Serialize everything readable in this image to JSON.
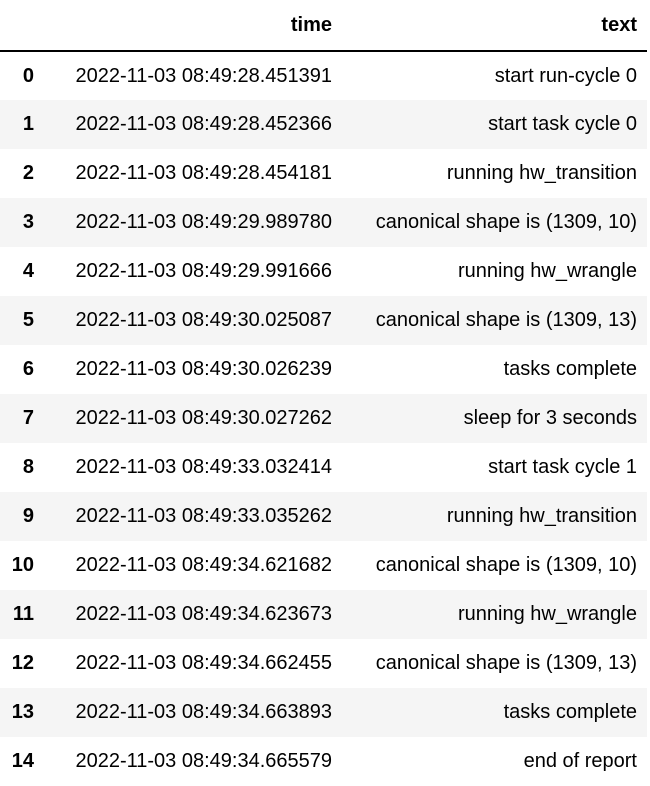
{
  "table": {
    "columns": {
      "index": "",
      "time": "time",
      "text": "text"
    },
    "rows": [
      {
        "index": "0",
        "time": "2022-11-03 08:49:28.451391",
        "text": "start run-cycle 0"
      },
      {
        "index": "1",
        "time": "2022-11-03 08:49:28.452366",
        "text": "start task cycle 0"
      },
      {
        "index": "2",
        "time": "2022-11-03 08:49:28.454181",
        "text": "running hw_transition"
      },
      {
        "index": "3",
        "time": "2022-11-03 08:49:29.989780",
        "text": "canonical shape is (1309, 10)"
      },
      {
        "index": "4",
        "time": "2022-11-03 08:49:29.991666",
        "text": "running hw_wrangle"
      },
      {
        "index": "5",
        "time": "2022-11-03 08:49:30.025087",
        "text": "canonical shape is (1309, 13)"
      },
      {
        "index": "6",
        "time": "2022-11-03 08:49:30.026239",
        "text": "tasks complete"
      },
      {
        "index": "7",
        "time": "2022-11-03 08:49:30.027262",
        "text": "sleep for 3 seconds"
      },
      {
        "index": "8",
        "time": "2022-11-03 08:49:33.032414",
        "text": "start task cycle 1"
      },
      {
        "index": "9",
        "time": "2022-11-03 08:49:33.035262",
        "text": "running hw_transition"
      },
      {
        "index": "10",
        "time": "2022-11-03 08:49:34.621682",
        "text": "canonical shape is (1309, 10)"
      },
      {
        "index": "11",
        "time": "2022-11-03 08:49:34.623673",
        "text": "running hw_wrangle"
      },
      {
        "index": "12",
        "time": "2022-11-03 08:49:34.662455",
        "text": "canonical shape is (1309, 13)"
      },
      {
        "index": "13",
        "time": "2022-11-03 08:49:34.663893",
        "text": "tasks complete"
      },
      {
        "index": "14",
        "time": "2022-11-03 08:49:34.665579",
        "text": "end of report"
      }
    ]
  }
}
